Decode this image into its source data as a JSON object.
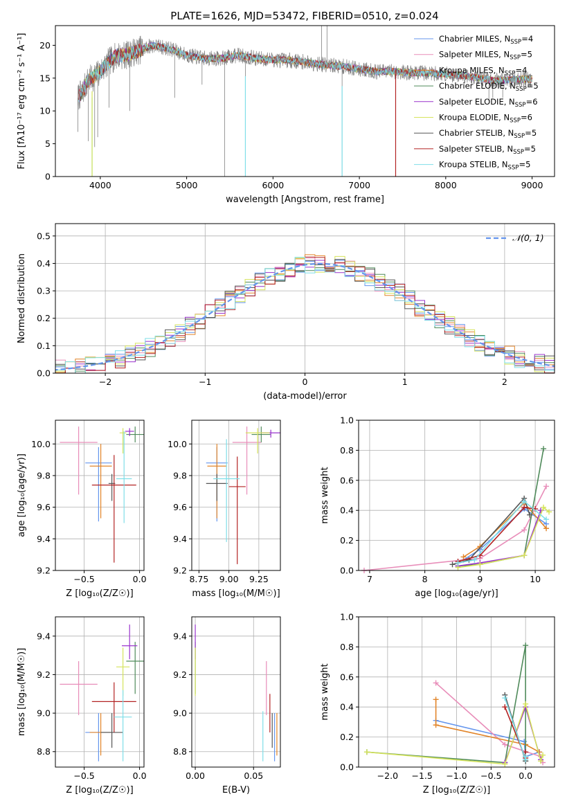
{
  "figure_title": "PLATE=1626, MJD=53472, FIBERID=0510, z=0.024",
  "models": [
    {
      "name": "Chabrier MILES",
      "nssp": "4",
      "color": "#6495ED"
    },
    {
      "name": "Salpeter MILES",
      "nssp": "5",
      "color": "#E88DB9"
    },
    {
      "name": "Kroupa MILES",
      "nssp": "4",
      "color": "#E2852A"
    },
    {
      "name": "Chabrier ELODIE",
      "nssp": "5",
      "color": "#4F8A5A"
    },
    {
      "name": "Salpeter ELODIE",
      "nssp": "6",
      "color": "#9932CC"
    },
    {
      "name": "Kroupa ELODIE",
      "nssp": "6",
      "color": "#D5E35B"
    },
    {
      "name": "Chabrier STELIB",
      "nssp": "5",
      "color": "#555555"
    },
    {
      "name": "Salpeter STELIB",
      "nssp": "5",
      "color": "#B22222"
    },
    {
      "name": "Kroupa STELIB",
      "nssp": "5",
      "color": "#7FDEE8"
    }
  ],
  "chart_data": [
    {
      "id": "spectrum",
      "type": "line",
      "xlabel": "wavelength [Angstrom, rest frame]",
      "ylabel": "Flux [fλ10⁻¹⁷ erg cm⁻² s⁻¹ A⁻¹]",
      "xlim": [
        3480,
        9260
      ],
      "ylim": [
        0,
        23
      ],
      "xticks": [
        4000,
        5000,
        6000,
        7000,
        8000,
        9000
      ],
      "yticks": [
        0,
        5,
        10,
        15,
        20
      ],
      "grid": false,
      "legend": "right",
      "continuum": [
        [
          3740,
          12.0
        ],
        [
          3800,
          13.0
        ],
        [
          3850,
          14.5
        ],
        [
          3900,
          15.0
        ],
        [
          3960,
          15.5
        ],
        [
          4000,
          16.0
        ],
        [
          4100,
          17.5
        ],
        [
          4200,
          18.5
        ],
        [
          4300,
          18.5
        ],
        [
          4400,
          19.0
        ],
        [
          4500,
          19.5
        ],
        [
          4600,
          20.0
        ],
        [
          4800,
          19.5
        ],
        [
          5000,
          18.5
        ],
        [
          5200,
          18.0
        ],
        [
          5400,
          18.0
        ],
        [
          5600,
          18.5
        ],
        [
          5800,
          18.0
        ],
        [
          6000,
          17.8
        ],
        [
          6200,
          17.7
        ],
        [
          6400,
          17.4
        ],
        [
          6600,
          17.0
        ],
        [
          6800,
          16.8
        ],
        [
          7000,
          16.4
        ],
        [
          7200,
          16.0
        ],
        [
          7400,
          16.0
        ],
        [
          7600,
          15.8
        ],
        [
          7800,
          15.8
        ],
        [
          8000,
          15.6
        ],
        [
          8200,
          15.4
        ],
        [
          8400,
          15.0
        ],
        [
          8600,
          14.6
        ],
        [
          8800,
          14.8
        ],
        [
          9000,
          14.9
        ]
      ],
      "data_spikes": [
        [
          3740,
          6.8
        ],
        [
          3860,
          5.4
        ],
        [
          3935,
          4.5
        ],
        [
          3970,
          6.0
        ],
        [
          4101,
          10.5
        ],
        [
          4340,
          10.0
        ],
        [
          4861,
          12.0
        ],
        [
          5178,
          14.0
        ],
        [
          5440,
          0.0
        ],
        [
          5680,
          0.0
        ],
        [
          6563,
          23.0
        ],
        [
          6625,
          23.0
        ],
        [
          6800,
          0.0
        ],
        [
          8500,
          11.5
        ],
        [
          8545,
          12.0
        ],
        [
          8660,
          12.0
        ]
      ],
      "model_drops": [
        [
          5680,
          0.0
        ],
        [
          6800,
          0.0
        ],
        [
          3905,
          0.0
        ]
      ]
    },
    {
      "id": "residual_histogram",
      "type": "bar",
      "xlabel": "(data-model)/error",
      "ylabel": "Normed distribution",
      "xlim": [
        -2.5,
        2.5
      ],
      "ylim": [
        0,
        0.545
      ],
      "xticks": [
        -2,
        -1,
        0,
        1,
        2
      ],
      "yticks": [
        0,
        0.1,
        0.2,
        0.3,
        0.4,
        0.5
      ],
      "grid": true,
      "legend": "top-right",
      "bin_width": 0.1,
      "normal_curve": {
        "label": "𝒩(0, 1)",
        "mean": 0.15,
        "sigma": 1.0,
        "color": "#6495ED"
      }
    },
    {
      "id": "age_vs_Z",
      "type": "scatter",
      "xlabel": "Z [log₁₀(Z/Z☉)]",
      "ylabel": "age  [log₁₀(age/yr)]",
      "xlim": [
        -0.76,
        0.04
      ],
      "ylim": [
        9.2,
        10.15
      ],
      "xticks": [
        -0.5,
        0.0
      ],
      "yticks": [
        9.2,
        9.4,
        9.6,
        9.8,
        10.0
      ],
      "grid": true,
      "points": [
        {
          "model": 0,
          "x": -0.37,
          "y": 9.88,
          "xerr": 0.12,
          "yerr": [
            0.37,
            0.1
          ]
        },
        {
          "model": 1,
          "x": -0.55,
          "y": 10.01,
          "xerr": 0.17,
          "yerr": [
            0.33,
            0.1
          ]
        },
        {
          "model": 2,
          "x": -0.35,
          "y": 9.86,
          "xerr": 0.1,
          "yerr": [
            0.33,
            0.14
          ]
        },
        {
          "model": 3,
          "x": -0.04,
          "y": 10.06,
          "xerr": 0.08,
          "yerr": [
            0.05,
            0.05
          ]
        },
        {
          "model": 4,
          "x": -0.09,
          "y": 10.08,
          "xerr": 0.04,
          "yerr": [
            0.03,
            0.02
          ]
        },
        {
          "model": 5,
          "x": -0.15,
          "y": 10.07,
          "xerr": 0.03,
          "yerr": [
            0.13,
            0.03
          ]
        },
        {
          "model": 6,
          "x": -0.25,
          "y": 9.75,
          "xerr": 0.03,
          "yerr": [
            0.11,
            0.06
          ]
        },
        {
          "model": 7,
          "x": -0.23,
          "y": 9.74,
          "xerr": 0.2,
          "yerr": [
            0.49,
            0.19
          ]
        },
        {
          "model": 8,
          "x": -0.14,
          "y": 9.78,
          "xerr": 0.07,
          "yerr": [
            0.28,
            0.3
          ]
        }
      ]
    },
    {
      "id": "age_vs_mass",
      "type": "scatter",
      "xlabel": "mass [log₁₀(M/M☉)]",
      "ylabel": "",
      "xlim": [
        8.69,
        9.43
      ],
      "ylim": [
        9.2,
        10.15
      ],
      "xticks": [
        8.75,
        9.0,
        9.25
      ],
      "yticks": [
        9.2,
        9.4,
        9.6,
        9.8,
        10.0
      ],
      "grid": true,
      "points": [
        {
          "model": 0,
          "x": 8.9,
          "y": 9.88,
          "xerr": 0.09,
          "yerr": [
            0.37,
            0.1
          ]
        },
        {
          "model": 1,
          "x": 9.15,
          "y": 10.01,
          "xerr": 0.12,
          "yerr": [
            0.33,
            0.1
          ]
        },
        {
          "model": 2,
          "x": 8.9,
          "y": 9.86,
          "xerr": 0.08,
          "yerr": [
            0.33,
            0.14
          ]
        },
        {
          "model": 3,
          "x": 9.27,
          "y": 10.06,
          "xerr": 0.08,
          "yerr": [
            0.05,
            0.05
          ]
        },
        {
          "model": 4,
          "x": 9.35,
          "y": 10.07,
          "xerr": 0.08,
          "yerr": [
            0.03,
            0.02
          ]
        },
        {
          "model": 5,
          "x": 9.24,
          "y": 10.07,
          "xerr": 0.1,
          "yerr": [
            0.13,
            0.03
          ]
        },
        {
          "model": 6,
          "x": 8.9,
          "y": 9.75,
          "xerr": 0.09,
          "yerr": [
            0.11,
            0.06
          ]
        },
        {
          "model": 7,
          "x": 9.07,
          "y": 9.73,
          "xerr": 0.07,
          "yerr": [
            0.49,
            0.19
          ]
        },
        {
          "model": 8,
          "x": 8.98,
          "y": 9.78,
          "xerr": 0.11,
          "yerr": [
            0.4,
            0.25
          ]
        }
      ]
    },
    {
      "id": "mass_weight_vs_age",
      "type": "line",
      "xlabel": "age  [log₁₀(age/yr)]",
      "ylabel": "mass weight",
      "xlim": [
        6.8,
        10.35
      ],
      "ylim": [
        0,
        1
      ],
      "xticks": [
        7,
        8,
        9,
        10
      ],
      "yticks": [
        0,
        0.2,
        0.4,
        0.6,
        0.8,
        1.0
      ],
      "grid": true,
      "series": [
        {
          "model": 0,
          "points": [
            [
              8.7,
              0.07
            ],
            [
              9.0,
              0.14
            ],
            [
              9.8,
              0.41
            ],
            [
              10.2,
              0.31
            ]
          ]
        },
        {
          "model": 1,
          "points": [
            [
              6.9,
              0.0
            ],
            [
              8.7,
              0.07
            ],
            [
              9.0,
              0.08
            ],
            [
              9.8,
              0.27
            ],
            [
              10.2,
              0.56
            ]
          ]
        },
        {
          "model": 2,
          "points": [
            [
              8.7,
              0.09
            ],
            [
              9.0,
              0.16
            ],
            [
              9.8,
              0.45
            ],
            [
              10.2,
              0.28
            ]
          ]
        },
        {
          "model": 3,
          "points": [
            [
              8.6,
              0.03
            ],
            [
              9.0,
              0.04
            ],
            [
              9.8,
              0.1
            ],
            [
              10.15,
              0.81
            ]
          ]
        },
        {
          "model": 4,
          "points": [
            [
              8.6,
              0.03
            ],
            [
              9.0,
              0.05
            ],
            [
              9.8,
              0.1
            ],
            [
              10.1,
              0.4
            ]
          ]
        },
        {
          "model": 5,
          "points": [
            [
              8.6,
              0.02
            ],
            [
              9.0,
              0.04
            ],
            [
              9.8,
              0.1
            ],
            [
              10.15,
              0.42
            ],
            [
              10.25,
              0.39
            ]
          ]
        },
        {
          "model": 6,
          "points": [
            [
              8.5,
              0.04
            ],
            [
              8.8,
              0.07
            ],
            [
              9.8,
              0.48
            ],
            [
              9.9,
              0.37
            ]
          ]
        },
        {
          "model": 7,
          "points": [
            [
              8.6,
              0.06
            ],
            [
              9.0,
              0.1
            ],
            [
              9.8,
              0.42
            ],
            [
              10.0,
              0.41
            ]
          ]
        },
        {
          "model": 8,
          "points": [
            [
              8.6,
              0.05
            ],
            [
              8.9,
              0.07
            ],
            [
              9.8,
              0.46
            ],
            [
              10.2,
              0.34
            ]
          ]
        }
      ]
    },
    {
      "id": "mass_vs_Z",
      "type": "scatter",
      "xlabel": "Z [log₁₀(Z/Z☉)]",
      "ylabel": "mass [log₁₀(M/M☉)]",
      "xlim": [
        -0.76,
        0.04
      ],
      "ylim": [
        8.72,
        9.5
      ],
      "xticks": [
        -0.5,
        0.0
      ],
      "yticks": [
        8.8,
        9.0,
        9.2,
        9.4
      ],
      "grid": true,
      "points": [
        {
          "model": 0,
          "x": -0.37,
          "y": 8.9,
          "xerr": 0.12,
          "yerr": [
            0.15,
            0.1
          ]
        },
        {
          "model": 1,
          "x": -0.55,
          "y": 9.15,
          "xerr": 0.17,
          "yerr": [
            0.16,
            0.12
          ]
        },
        {
          "model": 2,
          "x": -0.35,
          "y": 8.9,
          "xerr": 0.1,
          "yerr": [
            0.12,
            0.1
          ]
        },
        {
          "model": 3,
          "x": -0.04,
          "y": 9.27,
          "xerr": 0.08,
          "yerr": [
            0.17,
            0.1
          ]
        },
        {
          "model": 4,
          "x": -0.09,
          "y": 9.35,
          "xerr": 0.07,
          "yerr": [
            0.07,
            0.11
          ]
        },
        {
          "model": 5,
          "x": -0.15,
          "y": 9.24,
          "xerr": 0.06,
          "yerr": [
            0.15,
            0.1
          ]
        },
        {
          "model": 6,
          "x": -0.25,
          "y": 8.9,
          "xerr": 0.1,
          "yerr": [
            0.08,
            0.1
          ]
        },
        {
          "model": 7,
          "x": -0.23,
          "y": 9.06,
          "xerr": 0.2,
          "yerr": [
            0.16,
            0.1
          ]
        },
        {
          "model": 8,
          "x": -0.15,
          "y": 8.98,
          "xerr": 0.08,
          "yerr": [
            0.23,
            0.14
          ]
        }
      ]
    },
    {
      "id": "mass_vs_ebv",
      "type": "scatter",
      "xlabel": "E(B-V)",
      "ylabel": "",
      "xlim": [
        -0.003,
        0.073
      ],
      "ylim": [
        8.72,
        9.5
      ],
      "xticks": [
        0.0,
        0.05
      ],
      "yticks": [
        8.8,
        9.0,
        9.2,
        9.4
      ],
      "grid": true,
      "points": [
        {
          "model": 0,
          "x": 0.068,
          "y": 8.9,
          "xerr": 0,
          "yerr": [
            0.15,
            0.1
          ]
        },
        {
          "model": 1,
          "x": 0.061,
          "y": 9.15,
          "xerr": 0,
          "yerr": [
            0.16,
            0.12
          ]
        },
        {
          "model": 2,
          "x": 0.07,
          "y": 8.9,
          "xerr": 0,
          "yerr": [
            0.12,
            0.1
          ]
        },
        {
          "model": 3,
          "x": 0.0,
          "y": 9.27,
          "xerr": 0,
          "yerr": [
            0.17,
            0.1
          ]
        },
        {
          "model": 4,
          "x": 0.0,
          "y": 9.35,
          "xerr": 0,
          "yerr": [
            0.07,
            0.11
          ]
        },
        {
          "model": 5,
          "x": 0.0,
          "y": 9.24,
          "xerr": 0,
          "yerr": [
            0.15,
            0.1
          ]
        },
        {
          "model": 6,
          "x": 0.066,
          "y": 8.9,
          "xerr": 0,
          "yerr": [
            0.08,
            0.1
          ]
        },
        {
          "model": 7,
          "x": 0.064,
          "y": 9.0,
          "xerr": 0,
          "yerr": [
            0.1,
            0.1
          ]
        },
        {
          "model": 8,
          "x": 0.058,
          "y": 8.9,
          "xerr": 0,
          "yerr": [
            0.15,
            0.11
          ]
        }
      ]
    },
    {
      "id": "mass_weight_vs_Z",
      "type": "line",
      "xlabel": "Z [log₁₀(Z/Z☉)]",
      "ylabel": "mass weight",
      "xlim": [
        -2.42,
        0.42
      ],
      "ylim": [
        0,
        1
      ],
      "xticks": [
        -2.0,
        -1.5,
        -1.0,
        -0.5,
        0.0
      ],
      "yticks": [
        0,
        0.2,
        0.4,
        0.6,
        0.8,
        1.0
      ],
      "grid": true,
      "series": [
        {
          "model": 0,
          "points": [
            [
              -1.3,
              0.31
            ],
            [
              -0.02,
              0.17
            ],
            [
              0.0,
              0.07
            ],
            [
              0.2,
              0.1
            ]
          ]
        },
        {
          "model": 1,
          "points": [
            [
              -1.3,
              0.56
            ],
            [
              -0.3,
              0.15
            ],
            [
              0.22,
              0.07
            ],
            [
              0.25,
              0.03
            ]
          ]
        },
        {
          "model": 2,
          "points": [
            [
              -1.3,
              0.45
            ],
            [
              -1.3,
              0.28
            ],
            [
              0.0,
              0.15
            ],
            [
              0.2,
              0.1
            ]
          ]
        },
        {
          "model": 3,
          "points": [
            [
              -2.3,
              0.1
            ],
            [
              -0.3,
              0.03
            ],
            [
              0.0,
              0.81
            ],
            [
              0.0,
              0.04
            ]
          ]
        },
        {
          "model": 4,
          "points": [
            [
              -0.3,
              0.03
            ],
            [
              0.0,
              0.4
            ],
            [
              0.22,
              0.05
            ]
          ]
        },
        {
          "model": 5,
          "points": [
            [
              -2.3,
              0.1
            ],
            [
              -0.3,
              0.02
            ],
            [
              0.0,
              0.42
            ],
            [
              0.22,
              0.04
            ],
            [
              0.25,
              0.08
            ]
          ]
        },
        {
          "model": 6,
          "points": [
            [
              -0.3,
              0.48
            ],
            [
              0.0,
              0.04
            ],
            [
              0.0,
              0.07
            ]
          ]
        },
        {
          "model": 7,
          "points": [
            [
              -0.3,
              0.4
            ],
            [
              0.0,
              0.06
            ],
            [
              0.0,
              0.1
            ]
          ]
        },
        {
          "model": 8,
          "points": [
            [
              -0.3,
              0.46
            ],
            [
              0.0,
              0.05
            ],
            [
              0.0,
              0.07
            ]
          ]
        }
      ]
    }
  ]
}
